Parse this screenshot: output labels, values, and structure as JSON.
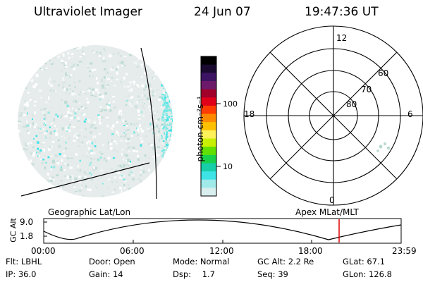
{
  "header": {
    "title": "Ultraviolet Imager",
    "date": "24 Jun 07",
    "time": "19:47:36 UT"
  },
  "colorbar": {
    "unit_label": "photon cm⁻²s⁻¹",
    "ticks": [
      "100",
      "10"
    ],
    "colors": [
      "#000000",
      "#1a0a30",
      "#3c1463",
      "#6e1a6a",
      "#a0002a",
      "#e0001a",
      "#ff3d00",
      "#ff8a00",
      "#ffc000",
      "#fff15a",
      "#c8f000",
      "#62e000",
      "#18d24c",
      "#16cfa8",
      "#3ee3e6",
      "#a0eaea",
      "#d9eeee"
    ]
  },
  "polar_plot": {
    "mlt_labels": {
      "top": "12",
      "left": "18",
      "right": "6",
      "bottom": "0"
    },
    "lat_labels": [
      "60",
      "70",
      "80"
    ]
  },
  "altitude_panel": {
    "ylabel": "GC Alt",
    "yticks": [
      "9.0",
      "1.8"
    ],
    "left_title": "Geographic Lat/Lon",
    "right_title": "Apex MLat/MLT",
    "xticks": [
      "00:00",
      "06:00",
      "12:00",
      "18:00",
      "23:59"
    ],
    "marker_color": "#e00000"
  },
  "info": {
    "flt": {
      "label": "Flt:",
      "value": "LBHL"
    },
    "door": {
      "label": "Door:",
      "value": "Open"
    },
    "mode": {
      "label": "Mode:",
      "value": "Normal"
    },
    "gcalt": {
      "label": "GC Alt:",
      "value": "2.2 Re"
    },
    "glat": {
      "label": "GLat:",
      "value": "67.1"
    },
    "ip": {
      "label": "IP:",
      "value": "36.0"
    },
    "gain": {
      "label": "Gain:",
      "value": "14"
    },
    "dsp": {
      "label": "Dsp:",
      "value": "1.7"
    },
    "seq": {
      "label": "Seq:",
      "value": "39"
    },
    "glon": {
      "label": "GLon:",
      "value": "126.8"
    }
  }
}
